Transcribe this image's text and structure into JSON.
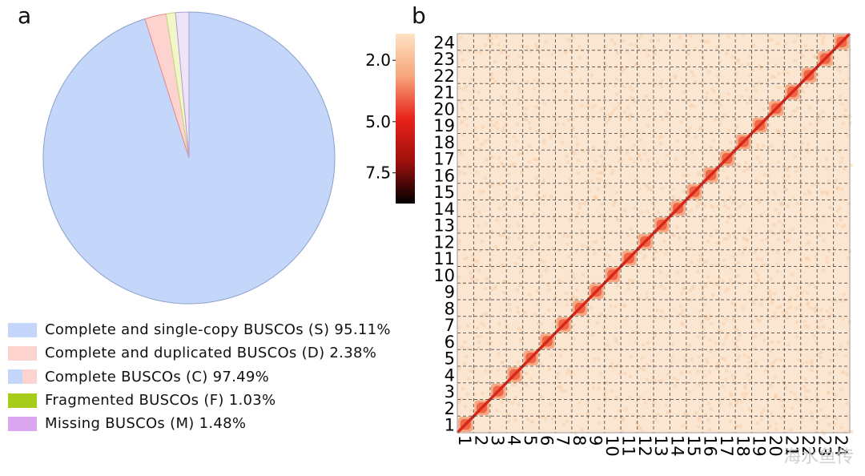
{
  "panels": {
    "a": "a",
    "b": "b"
  },
  "chart_data": [
    {
      "type": "pie",
      "panel": "a",
      "slices": [
        {
          "label": "Complete and single-copy BUSCOs (S) 95.11%",
          "value": 95.11,
          "color": "#c4d7fb"
        },
        {
          "label": "Complete and duplicated BUSCOs (D) 2.38%",
          "value": 2.38,
          "color": "#fdd3d0"
        },
        {
          "label": "Fragmented BUSCOs (F) 1.03%",
          "value": 1.03,
          "color": "#f1f7c8"
        },
        {
          "label": "Missing BUSCOs (M) 1.48%",
          "value": 1.48,
          "color": "#ece4f7"
        }
      ],
      "legend": [
        {
          "label": "Complete and single-copy BUSCOs (S) 95.11%",
          "color": "#c4d7fb"
        },
        {
          "label": "Complete and duplicated BUSCOs (D) 2.38%",
          "color": "#fdd3d0"
        },
        {
          "label": "Complete BUSCOs (C) 97.49%",
          "colors": [
            "#c4d7fb",
            "#fdd3d0"
          ]
        },
        {
          "label": "Fragmented BUSCOs (F) 1.03%",
          "color": "#a8cc1a"
        },
        {
          "label": "Missing BUSCOs (M) 1.48%",
          "color": "#dba6f0"
        }
      ],
      "legend_placement": "bottom-left"
    },
    {
      "type": "heatmap",
      "panel": "b",
      "x_ticks": [
        "1",
        "2",
        "3",
        "4",
        "5",
        "6",
        "7",
        "8",
        "9",
        "10",
        "11",
        "12",
        "13",
        "14",
        "15",
        "16",
        "17",
        "18",
        "19",
        "20",
        "21",
        "22",
        "23",
        "24"
      ],
      "y_ticks": [
        "1",
        "2",
        "3",
        "4",
        "5",
        "6",
        "7",
        "8",
        "9",
        "10",
        "11",
        "12",
        "13",
        "14",
        "15",
        "16",
        "17",
        "18",
        "19",
        "20",
        "21",
        "22",
        "23",
        "24"
      ],
      "grid": true,
      "colorbar": {
        "ticks": [
          "2.0",
          "5.0",
          "7.5"
        ],
        "tick_values": [
          2.0,
          5.0,
          7.5
        ],
        "range": [
          0.7,
          9.0
        ],
        "colors": [
          "#fde3c3",
          "#f6a57c",
          "#e8231a",
          "#a0100c",
          "#000000"
        ]
      }
    }
  ],
  "watermark": "海水鱼传"
}
